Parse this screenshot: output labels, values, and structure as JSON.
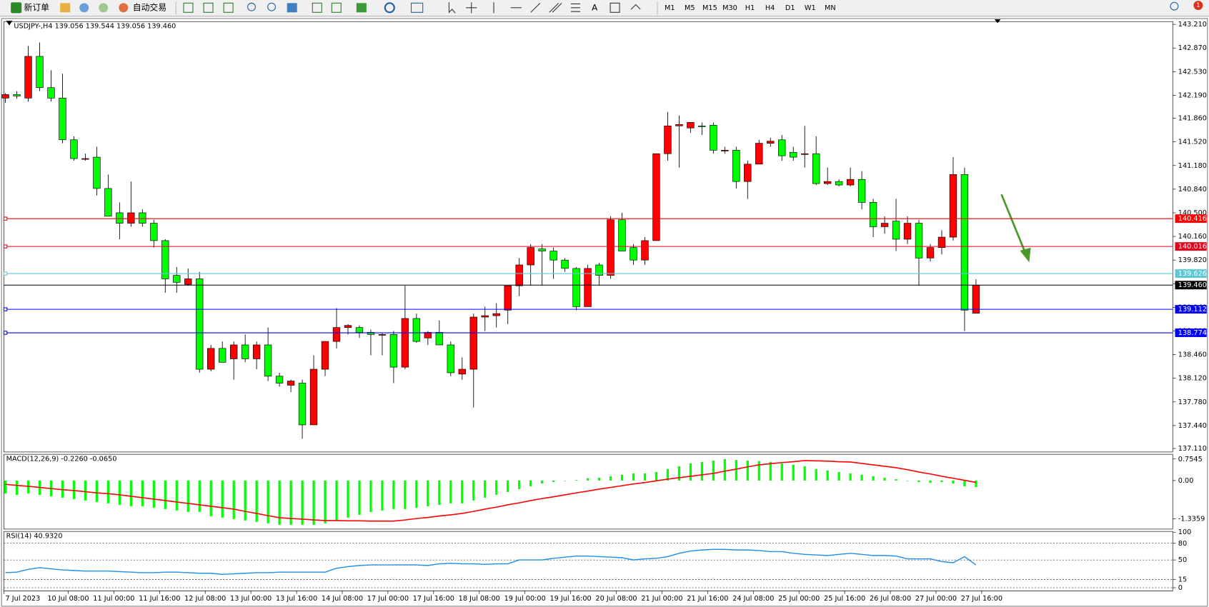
{
  "toolbar": {
    "new_order": "新订单",
    "auto_trading": "自动交易",
    "text_tool": "A",
    "timeframes": [
      "M1",
      "M5",
      "M15",
      "M30",
      "H1",
      "H4",
      "D1",
      "W1",
      "MN"
    ],
    "notification": "1"
  },
  "chart_data": [
    {
      "type": "candlestick",
      "title": "USDJPY-,H4  139.056 139.544 139.056 139.460",
      "up_color": "#ff0000",
      "down_color": "#00ff00",
      "candles": [
        [
          142.15,
          142.22,
          142.08,
          142.2
        ],
        [
          142.2,
          142.25,
          142.14,
          142.18
        ],
        [
          142.15,
          142.9,
          142.1,
          142.75
        ],
        [
          142.75,
          142.95,
          142.25,
          142.3
        ],
        [
          142.3,
          142.55,
          142.1,
          142.15
        ],
        [
          142.15,
          142.5,
          141.5,
          141.55
        ],
        [
          141.55,
          141.6,
          141.25,
          141.28
        ],
        [
          141.28,
          141.35,
          141.25,
          141.28
        ],
        [
          141.3,
          141.45,
          140.75,
          140.85
        ],
        [
          140.85,
          141.05,
          140.45,
          140.45
        ],
        [
          140.5,
          140.65,
          140.12,
          140.35
        ],
        [
          140.35,
          140.95,
          140.3,
          140.5
        ],
        [
          140.5,
          140.55,
          140.3,
          140.35
        ],
        [
          140.35,
          140.4,
          140.0,
          140.1
        ],
        [
          140.1,
          140.12,
          139.35,
          139.55
        ],
        [
          139.6,
          139.72,
          139.35,
          139.5
        ],
        [
          139.47,
          139.7,
          139.45,
          139.55
        ],
        [
          139.55,
          139.65,
          138.2,
          138.25
        ],
        [
          138.25,
          138.6,
          138.22,
          138.55
        ],
        [
          138.55,
          138.65,
          138.35,
          138.35
        ],
        [
          138.4,
          138.65,
          138.1,
          138.6
        ],
        [
          138.6,
          138.75,
          138.35,
          138.4
        ],
        [
          138.4,
          138.65,
          138.25,
          138.6
        ],
        [
          138.6,
          138.85,
          138.08,
          138.15
        ],
        [
          138.15,
          138.2,
          138.0,
          138.05
        ],
        [
          138.02,
          138.1,
          137.92,
          138.08
        ],
        [
          138.05,
          138.1,
          137.25,
          137.45
        ],
        [
          137.45,
          138.45,
          137.45,
          138.25
        ],
        [
          138.25,
          138.65,
          138.15,
          138.65
        ],
        [
          138.65,
          139.13,
          138.55,
          138.85
        ],
        [
          138.85,
          138.9,
          138.75,
          138.88
        ],
        [
          138.85,
          138.88,
          138.7,
          138.78
        ],
        [
          138.78,
          138.82,
          138.45,
          138.75
        ],
        [
          138.75,
          138.78,
          138.45,
          138.75
        ],
        [
          138.75,
          138.8,
          138.05,
          138.28
        ],
        [
          138.28,
          139.45,
          138.25,
          138.98
        ],
        [
          138.98,
          139.05,
          138.63,
          138.65
        ],
        [
          138.7,
          138.8,
          138.6,
          138.78
        ],
        [
          138.78,
          138.95,
          138.6,
          138.6
        ],
        [
          138.6,
          138.65,
          138.15,
          138.2
        ],
        [
          138.18,
          138.42,
          138.1,
          138.25
        ],
        [
          138.25,
          139.05,
          137.7,
          139.0
        ],
        [
          139.0,
          139.15,
          138.8,
          139.02
        ],
        [
          139.02,
          139.2,
          138.85,
          139.05
        ],
        [
          139.1,
          139.4,
          138.9,
          139.45
        ],
        [
          139.45,
          139.85,
          139.3,
          139.75
        ],
        [
          139.75,
          140.05,
          139.45,
          140.0
        ],
        [
          139.98,
          140.05,
          139.45,
          139.95
        ],
        [
          139.95,
          140.0,
          139.55,
          139.82
        ],
        [
          139.82,
          139.85,
          139.65,
          139.7
        ],
        [
          139.7,
          139.72,
          139.1,
          139.15
        ],
        [
          139.15,
          139.75,
          139.15,
          139.7
        ],
        [
          139.75,
          139.78,
          139.45,
          139.6
        ],
        [
          139.6,
          140.45,
          139.55,
          140.4
        ],
        [
          140.4,
          140.5,
          139.95,
          139.95
        ],
        [
          140.0,
          140.05,
          139.75,
          139.82
        ],
        [
          139.82,
          140.15,
          139.75,
          140.1
        ],
        [
          140.1,
          141.35,
          140.1,
          141.35
        ],
        [
          141.35,
          141.95,
          141.25,
          141.75
        ],
        [
          141.75,
          141.9,
          141.15,
          141.77
        ],
        [
          141.72,
          141.8,
          141.65,
          141.8
        ],
        [
          141.75,
          141.8,
          141.62,
          141.74
        ],
        [
          141.76,
          141.8,
          141.35,
          141.4
        ],
        [
          141.4,
          141.45,
          141.35,
          141.4
        ],
        [
          141.4,
          141.45,
          140.85,
          140.95
        ],
        [
          140.95,
          141.25,
          140.7,
          141.2
        ],
        [
          141.2,
          141.55,
          141.2,
          141.5
        ],
        [
          141.5,
          141.58,
          141.45,
          141.53
        ],
        [
          141.55,
          141.62,
          141.25,
          141.32
        ],
        [
          141.37,
          141.45,
          141.25,
          141.3
        ],
        [
          141.35,
          141.75,
          141.15,
          141.35
        ],
        [
          141.35,
          141.6,
          140.9,
          140.92
        ],
        [
          140.92,
          141.15,
          140.9,
          140.95
        ],
        [
          140.95,
          140.98,
          140.88,
          140.9
        ],
        [
          140.9,
          141.15,
          140.88,
          140.98
        ],
        [
          140.98,
          141.1,
          140.55,
          140.65
        ],
        [
          140.65,
          140.7,
          140.15,
          140.3
        ],
        [
          140.3,
          140.45,
          140.2,
          140.35
        ],
        [
          140.38,
          140.7,
          139.95,
          140.12
        ],
        [
          140.12,
          140.45,
          140.05,
          140.35
        ],
        [
          140.35,
          140.4,
          139.45,
          139.85
        ],
        [
          139.85,
          140.05,
          139.8,
          140.0
        ],
        [
          140.0,
          140.25,
          139.9,
          140.15
        ],
        [
          140.15,
          141.3,
          140.1,
          141.05
        ],
        [
          141.05,
          141.15,
          138.8,
          139.1
        ],
        [
          139.056,
          139.544,
          139.056,
          139.46
        ]
      ],
      "ylim": [
        137.06,
        143.25
      ],
      "yticks": [
        {
          "value": 143.21,
          "label": "143.210"
        },
        {
          "value": 142.87,
          "label": "142.870"
        },
        {
          "value": 142.53,
          "label": "142.530"
        },
        {
          "value": 142.19,
          "label": "142.190"
        },
        {
          "value": 141.86,
          "label": "141.860"
        },
        {
          "value": 141.52,
          "label": "141.520"
        },
        {
          "value": 141.18,
          "label": "141.180"
        },
        {
          "value": 140.84,
          "label": "140.840"
        },
        {
          "value": 140.5,
          "label": "140.500"
        },
        {
          "value": 140.16,
          "label": "140.160"
        },
        {
          "value": 139.82,
          "label": "139.820"
        },
        {
          "value": 139.48,
          "label": "139.480"
        },
        {
          "value": 139.14,
          "label": "139.140"
        },
        {
          "value": 138.8,
          "label": "138.800"
        },
        {
          "value": 138.46,
          "label": "138.460"
        },
        {
          "value": 138.12,
          "label": "138.120"
        },
        {
          "value": 137.78,
          "label": "137.780"
        },
        {
          "value": 137.44,
          "label": "137.440"
        },
        {
          "value": 137.11,
          "label": "137.110"
        }
      ],
      "levels": [
        {
          "value": 140.416,
          "color": "#ff0000"
        },
        {
          "value": 140.016,
          "color": "#e8001c"
        },
        {
          "value": 139.626,
          "color": "#5bc8d8"
        },
        {
          "value": 139.46,
          "label": "139.460",
          "color": "#000000"
        },
        {
          "value": 139.112,
          "color": "#0000ff"
        },
        {
          "value": 138.774,
          "color": "#0000ff"
        }
      ],
      "time_labels": [
        "7 Jul 2023",
        "10 Jul 08:00",
        "11 Jul 00:00",
        "11 Jul 16:00",
        "12 Jul 08:00",
        "13 Jul 00:00",
        "13 Jul 16:00",
        "14 Jul 08:00",
        "17 Jul 00:00",
        "17 Jul 16:00",
        "18 Jul 08:00",
        "19 Jul 00:00",
        "19 Jul 16:00",
        "20 Jul 08:00",
        "21 Jul 00:00",
        "21 Jul 16:00",
        "24 Jul 08:00",
        "25 Jul 00:00",
        "25 Jul 16:00",
        "26 Jul 08:00",
        "27 Jul 00:00",
        "27 Jul 16:00"
      ]
    },
    {
      "type": "macd",
      "title": "MACD(12,26,9) -0.2260 -0.0650",
      "histogram": {
        "color": "#00ff00",
        "values": [
          -0.45,
          -0.5,
          -0.45,
          -0.5,
          -0.55,
          -0.6,
          -0.65,
          -0.7,
          -0.75,
          -0.8,
          -0.85,
          -0.9,
          -0.9,
          -0.95,
          -1.0,
          -1.05,
          -1.1,
          -1.1,
          -1.25,
          -1.3,
          -1.35,
          -1.4,
          -1.45,
          -1.5,
          -1.55,
          -1.55,
          -1.55,
          -1.55,
          -1.5,
          -1.4,
          -1.3,
          -1.2,
          -1.1,
          -1.05,
          -1.0,
          -1.0,
          -0.95,
          -0.9,
          -0.85,
          -0.8,
          -0.8,
          -0.7,
          -0.6,
          -0.5,
          -0.4,
          -0.3,
          -0.2,
          -0.1,
          -0.05,
          0.0,
          0.02,
          0.08,
          0.1,
          0.15,
          0.2,
          0.25,
          0.25,
          0.3,
          0.4,
          0.5,
          0.6,
          0.65,
          0.7,
          0.75,
          0.72,
          0.7,
          0.68,
          0.65,
          0.6,
          0.55,
          0.5,
          0.4,
          0.35,
          0.3,
          0.25,
          0.2,
          0.15,
          0.1,
          0.05,
          0.0,
          -0.05,
          -0.08,
          -0.05,
          -0.1,
          -0.2,
          -0.226
        ]
      },
      "signal": {
        "color": "#ff0000",
        "values": [
          -0.13,
          -0.17,
          -0.2,
          -0.24,
          -0.28,
          -0.32,
          -0.35,
          -0.39,
          -0.43,
          -0.46,
          -0.5,
          -0.55,
          -0.6,
          -0.65,
          -0.7,
          -0.75,
          -0.8,
          -0.85,
          -0.9,
          -0.95,
          -1.0,
          -1.08,
          -1.15,
          -1.23,
          -1.3,
          -1.33,
          -1.35,
          -1.38,
          -1.4,
          -1.4,
          -1.41,
          -1.41,
          -1.42,
          -1.42,
          -1.42,
          -1.38,
          -1.33,
          -1.29,
          -1.24,
          -1.2,
          -1.15,
          -1.08,
          -1.0,
          -0.93,
          -0.85,
          -0.78,
          -0.7,
          -0.63,
          -0.57,
          -0.5,
          -0.43,
          -0.37,
          -0.3,
          -0.24,
          -0.18,
          -0.12,
          -0.07,
          -0.01,
          0.05,
          0.1,
          0.15,
          0.2,
          0.25,
          0.33,
          0.4,
          0.48,
          0.55,
          0.59,
          0.63,
          0.66,
          0.7,
          0.69,
          0.68,
          0.66,
          0.65,
          0.6,
          0.55,
          0.5,
          0.45,
          0.38,
          0.3,
          0.23,
          0.15,
          0.08,
          0.01,
          -0.065
        ]
      },
      "ylim": [
        -1.7,
        0.92
      ],
      "yticks": [
        0.7545,
        {
          "value": 0,
          "label": "0.00"
        },
        -1.3359
      ]
    },
    {
      "type": "line",
      "title": "RSI(14) 40.9320",
      "color": "#1e8fe8",
      "values": [
        27,
        28,
        33,
        36,
        34,
        32,
        31,
        30,
        30,
        30,
        29,
        28,
        27,
        27,
        28,
        28,
        27,
        26,
        26,
        24,
        25,
        26,
        27,
        27,
        28,
        28,
        28,
        28,
        28,
        35,
        38,
        40,
        41,
        41,
        41,
        41,
        41,
        40,
        43,
        44,
        43,
        43,
        42,
        43,
        43,
        50,
        50,
        50,
        53,
        55,
        57,
        57,
        56,
        55,
        54,
        50,
        52,
        53,
        56,
        62,
        66,
        68,
        69,
        69,
        68,
        68,
        67,
        65,
        65,
        62,
        60,
        59,
        58,
        60,
        62,
        60,
        58,
        58,
        57,
        52,
        52,
        52,
        47,
        45,
        56,
        40.932
      ],
      "ylim": [
        -5.6,
        101.4
      ],
      "yticks": [
        100,
        80,
        50,
        15,
        0
      ]
    }
  ]
}
